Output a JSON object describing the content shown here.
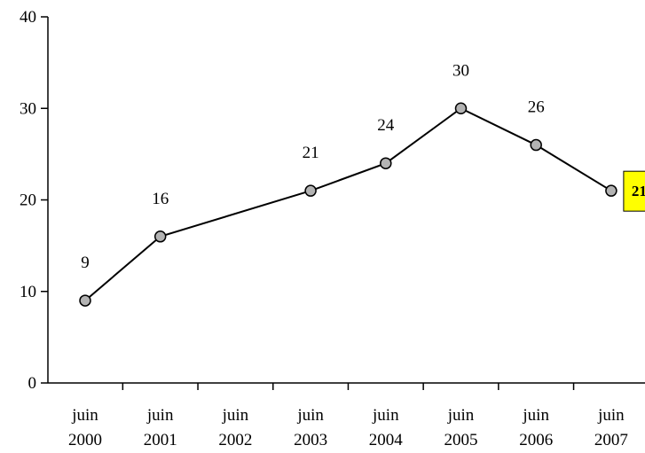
{
  "chart_data": {
    "type": "line",
    "title": "",
    "xlabel": "",
    "ylabel": "",
    "categories": [
      [
        "juin",
        "2000"
      ],
      [
        "juin",
        "2001"
      ],
      [
        "juin",
        "2002"
      ],
      [
        "juin",
        "2003"
      ],
      [
        "juin",
        "2004"
      ],
      [
        "juin",
        "2005"
      ],
      [
        "juin",
        "2006"
      ],
      [
        "juin",
        "2007"
      ]
    ],
    "series": [
      {
        "points": [
          {
            "category": 0,
            "value": 9
          },
          {
            "category": 1,
            "value": 16
          },
          {
            "category": 3,
            "value": 21
          },
          {
            "category": 4,
            "value": 24
          },
          {
            "category": 5,
            "value": 30
          },
          {
            "category": 6,
            "value": 26
          },
          {
            "category": 7,
            "value": 21
          }
        ],
        "line_color": "#000000",
        "marker_color": "#b3b3b3"
      }
    ],
    "highlighted_point_index": 6,
    "highlight_color": "#ffff00",
    "ylim": [
      0,
      40
    ],
    "yticks": [
      0,
      10,
      20,
      30,
      40
    ],
    "grid": false,
    "legend": "none"
  }
}
